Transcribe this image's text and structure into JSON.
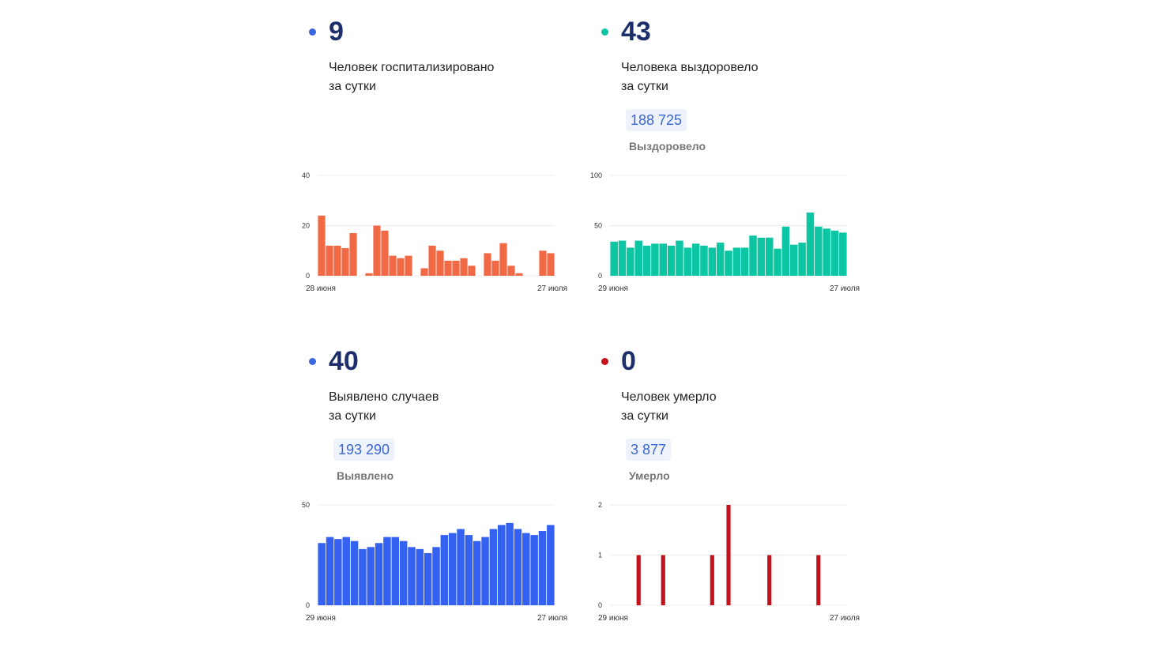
{
  "cards": [
    {
      "id": "hospitalized",
      "value": "9",
      "line1": "Человек госпитализировано",
      "line2": "за сутки",
      "total": "",
      "total_label": "",
      "color": "#f26a45",
      "dot_color": "#3a66e0"
    },
    {
      "id": "recovered",
      "value": "43",
      "line1": "Человека выздоровело",
      "line2": "за сутки",
      "total": "188 725",
      "total_label": "Выздоровело",
      "color": "#0cc6a3",
      "dot_color": "#0cc6a3"
    },
    {
      "id": "cases",
      "value": "40",
      "line1": "Выявлено случаев",
      "line2": "за сутки",
      "total": "193 290",
      "total_label": "Выявлено",
      "color": "#3461f0",
      "dot_color": "#3a66e0"
    },
    {
      "id": "deaths",
      "value": "0",
      "line1": "Человек умерло",
      "line2": "за сутки",
      "total": "3 877",
      "total_label": "Умерло",
      "color": "#c4121c",
      "dot_color": "#c4121c"
    }
  ],
  "chart_data": [
    {
      "type": "bar",
      "x_start": "28 июня",
      "x_end": "27 июля",
      "ylim": [
        0,
        40
      ],
      "yticks": [
        0,
        20,
        40
      ],
      "values": [
        24,
        12,
        12,
        11,
        17,
        0,
        1,
        20,
        18,
        8,
        7,
        8,
        0,
        3,
        12,
        10,
        6,
        6,
        7,
        4,
        0,
        9,
        6,
        13,
        4,
        1,
        0,
        0,
        10,
        9
      ],
      "color": "#f26a45"
    },
    {
      "type": "bar",
      "x_start": "29 июня",
      "x_end": "27 июля",
      "ylim": [
        0,
        100
      ],
      "yticks": [
        0,
        50,
        100
      ],
      "values": [
        34,
        35,
        28,
        35,
        30,
        32,
        32,
        30,
        35,
        28,
        32,
        30,
        28,
        33,
        25,
        28,
        28,
        40,
        38,
        38,
        27,
        49,
        31,
        33,
        63,
        49,
        47,
        45,
        43
      ],
      "color": "#0cc6a3"
    },
    {
      "type": "bar",
      "x_start": "29 июня",
      "x_end": "27 июля",
      "ylim": [
        0,
        50
      ],
      "yticks": [
        0,
        50
      ],
      "values": [
        31,
        34,
        33,
        34,
        32,
        28,
        29,
        31,
        34,
        34,
        32,
        29,
        28,
        26,
        29,
        35,
        36,
        38,
        35,
        32,
        34,
        38,
        40,
        41,
        38,
        36,
        35,
        37,
        40
      ],
      "color": "#3461f0"
    },
    {
      "type": "bar",
      "x_start": "29 июня",
      "x_end": "27 июля",
      "ylim": [
        0,
        2
      ],
      "yticks": [
        0,
        1,
        2
      ],
      "values": [
        0,
        0,
        0,
        1,
        0,
        0,
        1,
        0,
        0,
        0,
        0,
        0,
        1,
        0,
        2,
        0,
        0,
        0,
        0,
        1,
        0,
        0,
        0,
        0,
        0,
        1,
        0,
        0,
        0
      ],
      "color": "#c4121c"
    }
  ]
}
